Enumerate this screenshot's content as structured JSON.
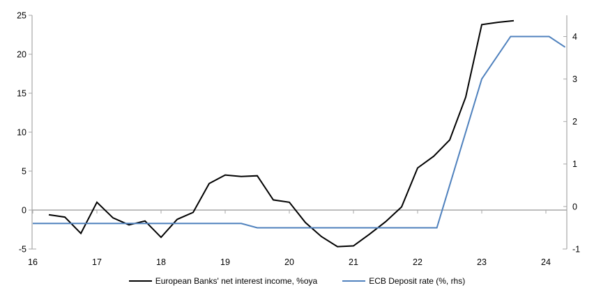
{
  "chart_data": {
    "type": "line",
    "title": "",
    "series": [
      {
        "name": "European Banks' net interest income, %oya",
        "axis": "left",
        "color": "#000000",
        "points": [
          [
            16.25,
            -0.6
          ],
          [
            16.5,
            -0.9
          ],
          [
            16.75,
            -3.0
          ],
          [
            17.0,
            1.0
          ],
          [
            17.25,
            -1.0
          ],
          [
            17.5,
            -1.9
          ],
          [
            17.75,
            -1.4
          ],
          [
            18.0,
            -3.5
          ],
          [
            18.25,
            -1.2
          ],
          [
            18.5,
            -0.3
          ],
          [
            18.75,
            3.4
          ],
          [
            19.0,
            4.5
          ],
          [
            19.25,
            4.3
          ],
          [
            19.5,
            4.4
          ],
          [
            19.75,
            1.3
          ],
          [
            20.0,
            1.0
          ],
          [
            20.25,
            -1.6
          ],
          [
            20.5,
            -3.4
          ],
          [
            20.75,
            -4.7
          ],
          [
            21.0,
            -4.6
          ],
          [
            21.25,
            -3.1
          ],
          [
            21.5,
            -1.5
          ],
          [
            21.75,
            0.4
          ],
          [
            22.0,
            5.4
          ],
          [
            22.25,
            6.9
          ],
          [
            22.5,
            9.0
          ],
          [
            22.75,
            14.5
          ],
          [
            23.0,
            23.8
          ],
          [
            23.25,
            24.1
          ],
          [
            23.5,
            24.3
          ]
        ]
      },
      {
        "name": "ECB Deposit rate (%, rhs)",
        "axis": "right",
        "color": "#4f81bd",
        "points": [
          [
            16.0,
            -0.4
          ],
          [
            19.25,
            -0.4
          ],
          [
            19.5,
            -0.5
          ],
          [
            22.3,
            -0.5
          ],
          [
            23.0,
            3.0
          ],
          [
            23.45,
            4.0
          ],
          [
            24.05,
            4.0
          ],
          [
            24.3,
            3.75
          ]
        ]
      }
    ],
    "left_axis": {
      "range": [
        -5,
        25
      ],
      "ticks": [
        -5,
        0,
        5,
        10,
        15,
        20,
        25
      ]
    },
    "right_axis": {
      "range": [
        -1,
        4.5
      ],
      "ticks": [
        -1,
        0,
        1,
        2,
        3,
        4
      ]
    },
    "x_axis": {
      "range": [
        16,
        24.33
      ],
      "ticks": [
        16,
        17,
        18,
        19,
        20,
        21,
        22,
        23,
        24
      ]
    },
    "grid": "zero-line-only",
    "legend_position": "bottom",
    "colors": {
      "axis": "#a6a6a6",
      "background": "#ffffff",
      "text": "#000000"
    }
  }
}
